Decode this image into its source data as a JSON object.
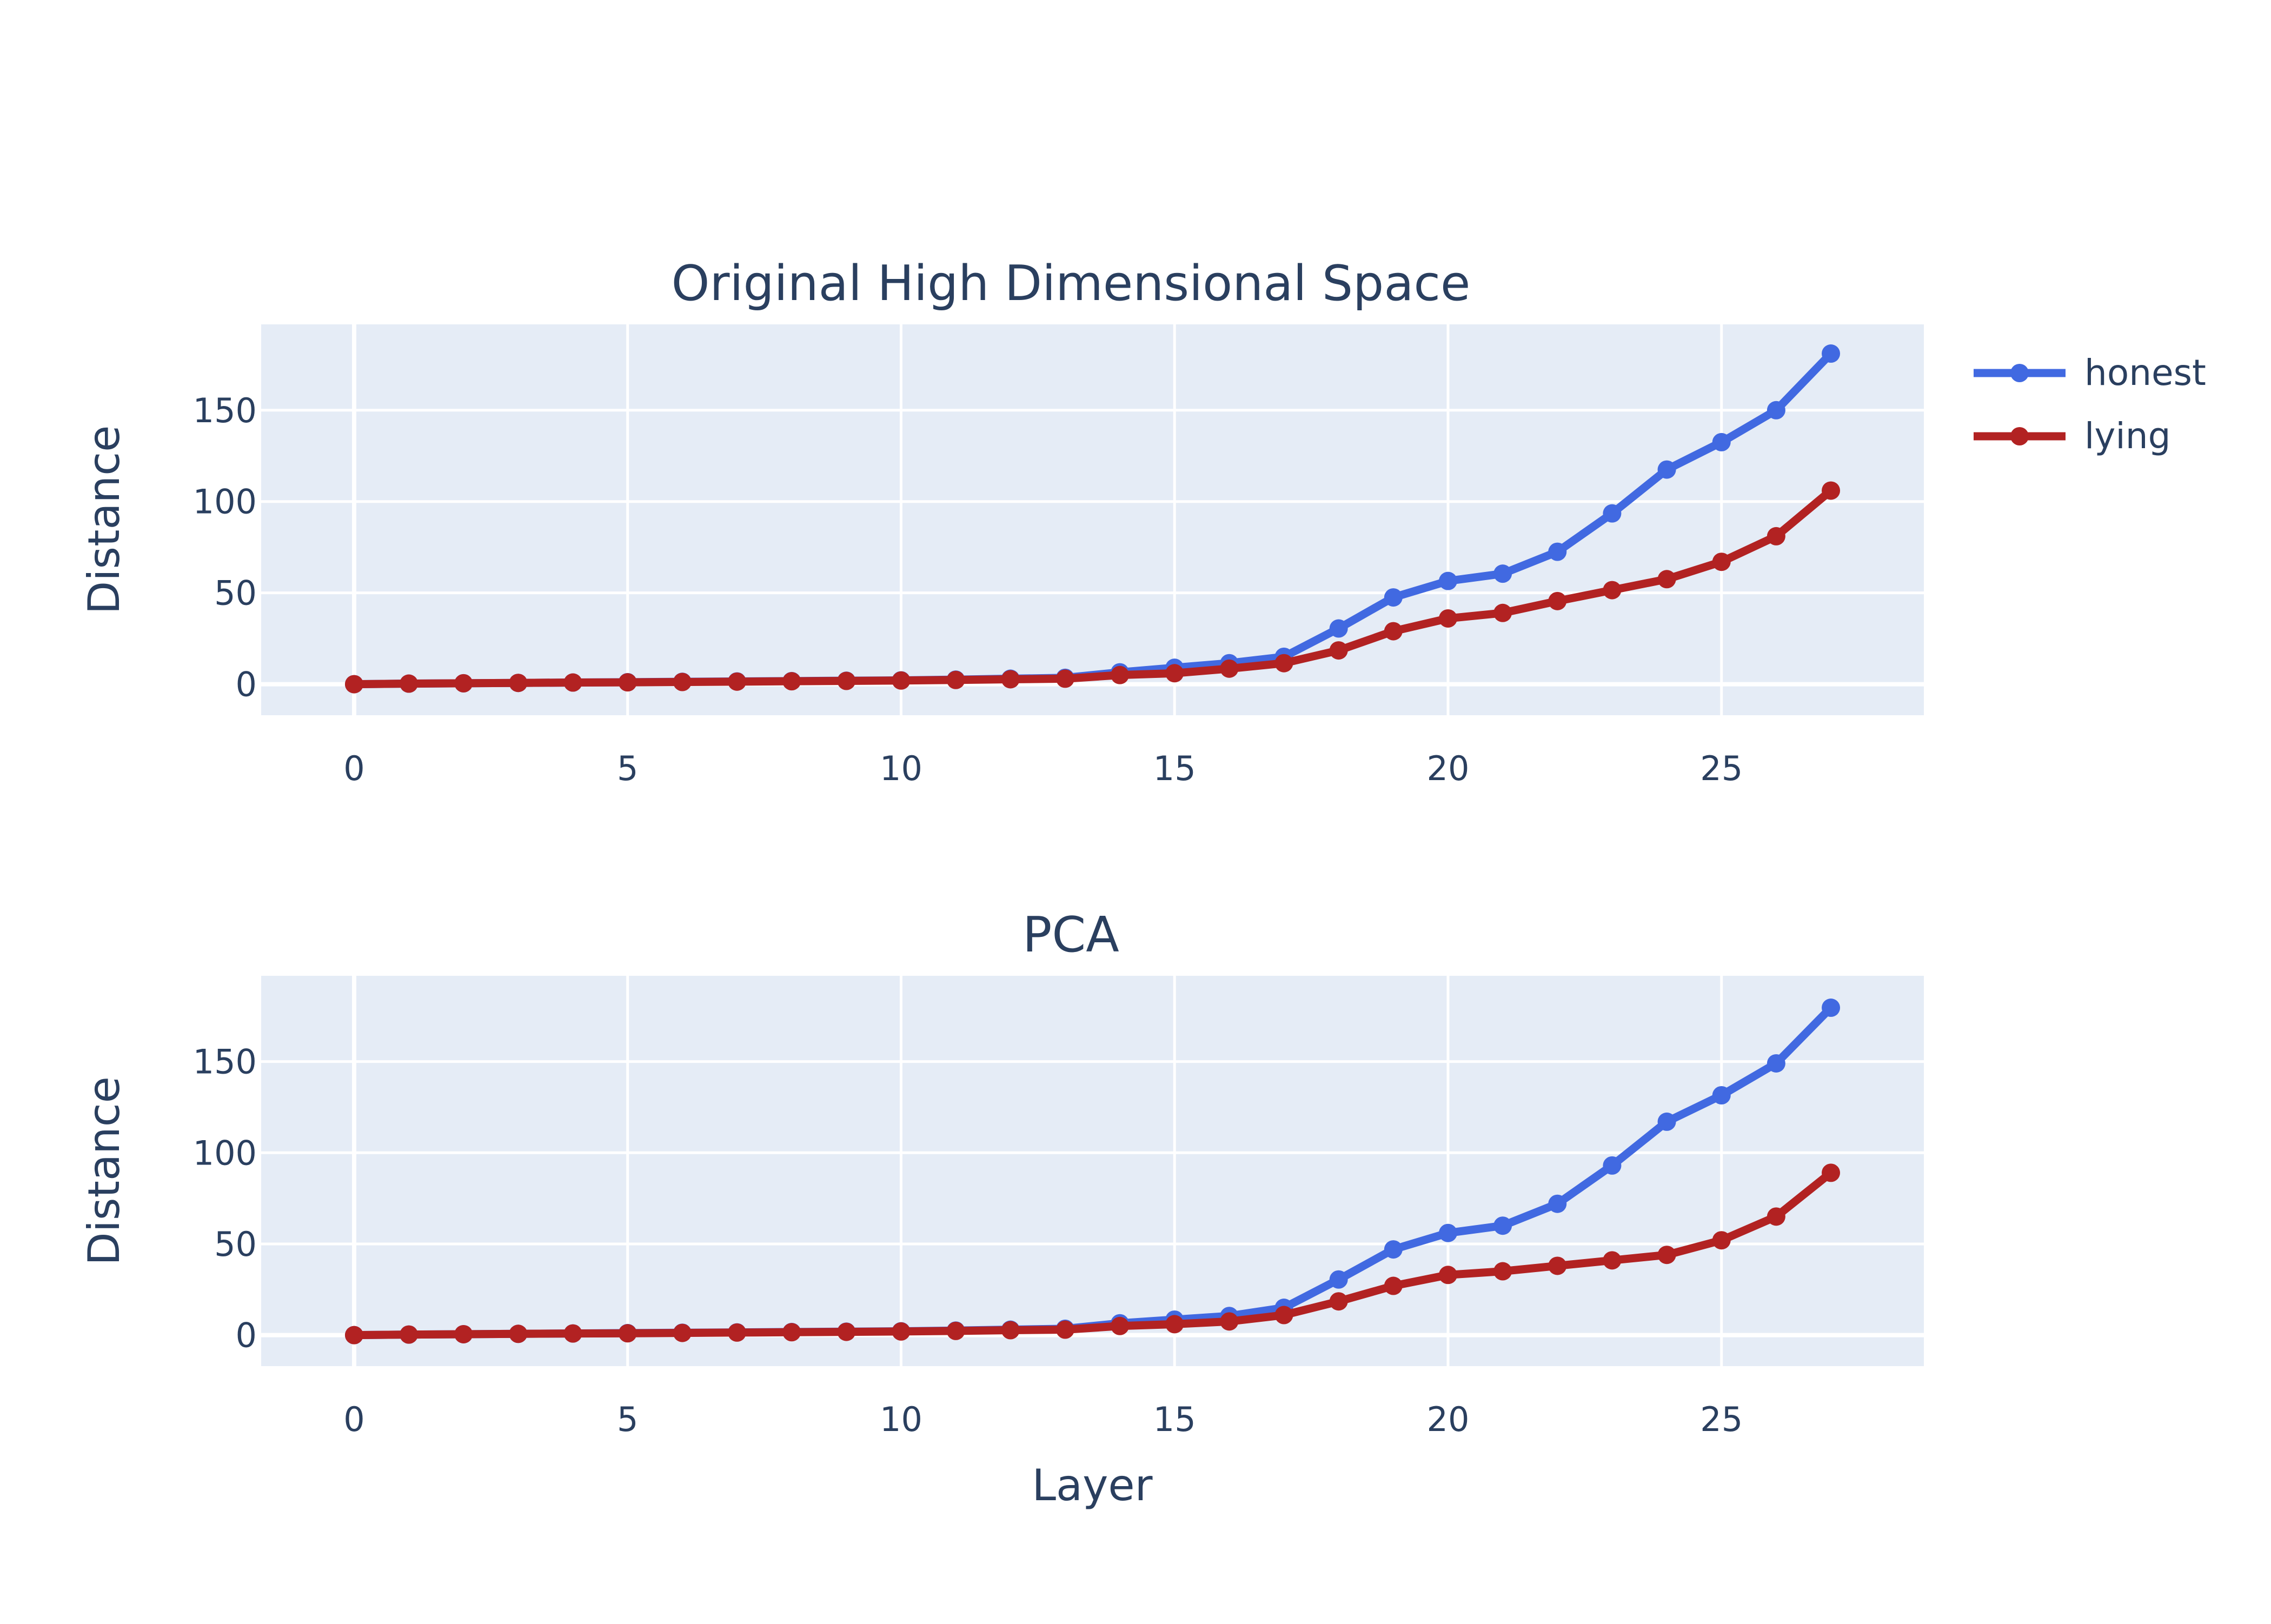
{
  "legend": {
    "position": "right",
    "entries": [
      {
        "name": "honest",
        "color": "#4169E1"
      },
      {
        "name": "lying",
        "color": "#B22222"
      }
    ]
  },
  "shared_xlabel": "Layer",
  "colors": {
    "plot_bg": "#E5ECF6",
    "grid": "#ffffff",
    "text": "#2a3f5f"
  },
  "chart_data": [
    {
      "type": "line",
      "title": "Original High Dimensional Space",
      "xlabel": "",
      "ylabel": "Distance",
      "xlim": [
        -1.7,
        28.7
      ],
      "ylim": [
        -17,
        197
      ],
      "xticks": [
        0,
        5,
        10,
        15,
        20,
        25
      ],
      "yticks": [
        0,
        50,
        100,
        150
      ],
      "grid": true,
      "x": [
        0,
        1,
        2,
        3,
        4,
        5,
        6,
        7,
        8,
        9,
        10,
        11,
        12,
        13,
        14,
        15,
        16,
        17,
        18,
        19,
        20,
        21,
        22,
        23,
        24,
        25,
        26,
        27
      ],
      "series": [
        {
          "name": "honest",
          "color": "#4169E1",
          "values": [
            0,
            0.3,
            0.5,
            0.7,
            0.9,
            1.1,
            1.3,
            1.5,
            1.7,
            1.9,
            2.1,
            2.5,
            3.0,
            3.5,
            6.5,
            9,
            11.5,
            15,
            30.5,
            47.5,
            56.5,
            60.5,
            72.5,
            93.5,
            117.5,
            132.5,
            150,
            181
          ]
        },
        {
          "name": "lying",
          "color": "#B22222",
          "values": [
            0,
            0.3,
            0.5,
            0.7,
            0.9,
            1.0,
            1.2,
            1.4,
            1.6,
            1.8,
            2.0,
            2.3,
            2.7,
            3.0,
            5.0,
            6.0,
            8.5,
            11.5,
            18.5,
            29,
            36,
            39,
            45.5,
            51.5,
            57.5,
            67,
            81,
            106
          ]
        }
      ]
    },
    {
      "type": "line",
      "title": "PCA",
      "xlabel": "Layer",
      "ylabel": "Distance",
      "xlim": [
        -1.7,
        28.7
      ],
      "ylim": [
        -17,
        197
      ],
      "xticks": [
        0,
        5,
        10,
        15,
        20,
        25
      ],
      "yticks": [
        0,
        50,
        100,
        150
      ],
      "grid": true,
      "x": [
        0,
        1,
        2,
        3,
        4,
        5,
        6,
        7,
        8,
        9,
        10,
        11,
        12,
        13,
        14,
        15,
        16,
        17,
        18,
        19,
        20,
        21,
        22,
        23,
        24,
        25,
        26,
        27
      ],
      "series": [
        {
          "name": "honest",
          "color": "#4169E1",
          "values": [
            0,
            0.3,
            0.5,
            0.7,
            0.9,
            1.1,
            1.3,
            1.5,
            1.7,
            1.9,
            2.1,
            2.5,
            3.0,
            3.5,
            6.5,
            8.5,
            10.5,
            15,
            30.5,
            47,
            56,
            60,
            72,
            93,
            117,
            131.5,
            149,
            179.5
          ]
        },
        {
          "name": "lying",
          "color": "#B22222",
          "values": [
            0,
            0.3,
            0.5,
            0.7,
            0.9,
            1.0,
            1.2,
            1.4,
            1.6,
            1.8,
            2.0,
            2.3,
            2.7,
            3.0,
            5.0,
            6.0,
            7.5,
            11,
            18.5,
            27,
            33,
            35,
            38,
            41,
            44,
            52,
            65,
            89
          ]
        }
      ]
    }
  ]
}
